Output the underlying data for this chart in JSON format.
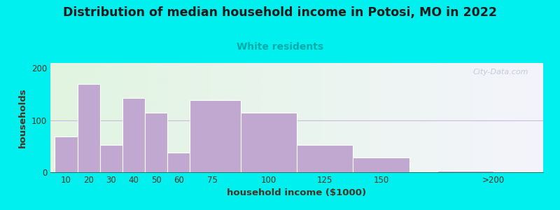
{
  "title": "Distribution of median household income in Potosi, MO in 2022",
  "subtitle": "White residents",
  "xlabel": "household income ($1000)",
  "ylabel": "households",
  "title_color": "#1a1a1a",
  "subtitle_color": "#00aaaa",
  "axis_label_color": "#4a3322",
  "tick_label_color": "#4a3322",
  "bar_color": "#c0a8d0",
  "bar_edge_color": "#ffffff",
  "background_outer": "#00f0f0",
  "background_inner_left": "#e0f4e0",
  "background_inner_right": "#f4f4fc",
  "categories": [
    "10",
    "20",
    "30",
    "40",
    "50",
    "60",
    "75",
    "100",
    "125",
    "150",
    ">200"
  ],
  "values": [
    68,
    170,
    52,
    143,
    115,
    38,
    138,
    115,
    52,
    28,
    3
  ],
  "bar_lefts": [
    5,
    15,
    25,
    35,
    45,
    55,
    65,
    87.5,
    112.5,
    137.5,
    175
  ],
  "bar_widths": [
    10,
    10,
    10,
    10,
    10,
    10,
    22.5,
    25,
    25,
    25,
    25
  ],
  "tick_positions": [
    10,
    20,
    30,
    40,
    50,
    60,
    75,
    100,
    125,
    150,
    200
  ],
  "xlim": [
    3,
    222
  ],
  "ylim": [
    0,
    210
  ],
  "yticks": [
    0,
    100,
    200
  ],
  "watermark_text": "City-Data.com",
  "grid_color": "#ccbbdd",
  "title_fontsize": 12.5,
  "subtitle_fontsize": 10,
  "axis_label_fontsize": 9.5
}
